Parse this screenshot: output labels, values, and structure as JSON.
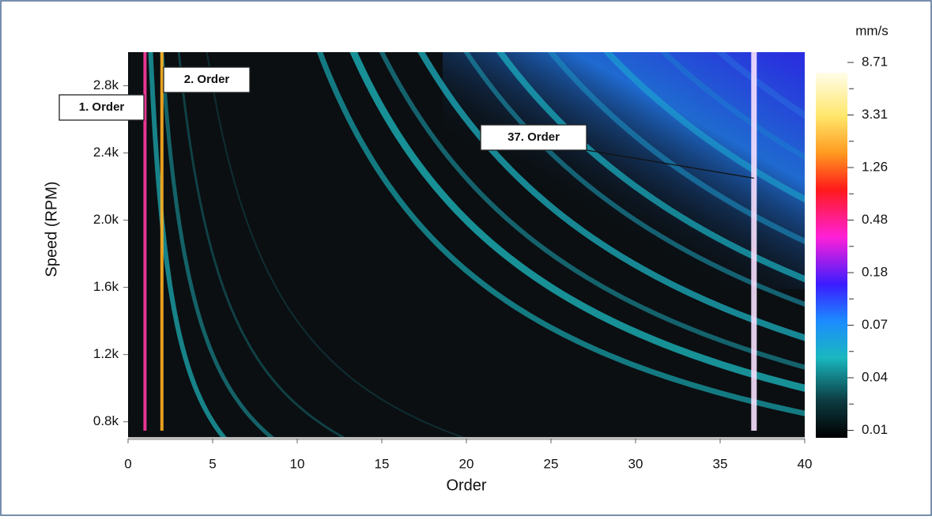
{
  "chart_data": {
    "type": "heatmap",
    "x_label": "Order",
    "y_label": "Speed (RPM)",
    "xlim": [
      0,
      40
    ],
    "xticks": [
      0,
      5,
      10,
      15,
      20,
      25,
      30,
      35,
      40
    ],
    "ylim": [
      700,
      3000
    ],
    "yticks": [
      {
        "value": 800,
        "label": "0.8k"
      },
      {
        "value": 1200,
        "label": "1.2k"
      },
      {
        "value": 1600,
        "label": "1.6k"
      },
      {
        "value": 2000,
        "label": "2.0k"
      },
      {
        "value": 2400,
        "label": "2.4k"
      },
      {
        "value": 2800,
        "label": "2.8k"
      }
    ],
    "colorbar": {
      "unit": "mm/s",
      "labels": [
        "8.71",
        "3.31",
        "1.26",
        "0.48",
        "0.18",
        "0.07",
        "0.04",
        "0.01"
      ]
    },
    "annotations": [
      {
        "text": "1. Order",
        "x": 1
      },
      {
        "text": "2. Order",
        "x": 2
      },
      {
        "text": "37. Order",
        "x": 37,
        "y": 2250
      }
    ]
  }
}
